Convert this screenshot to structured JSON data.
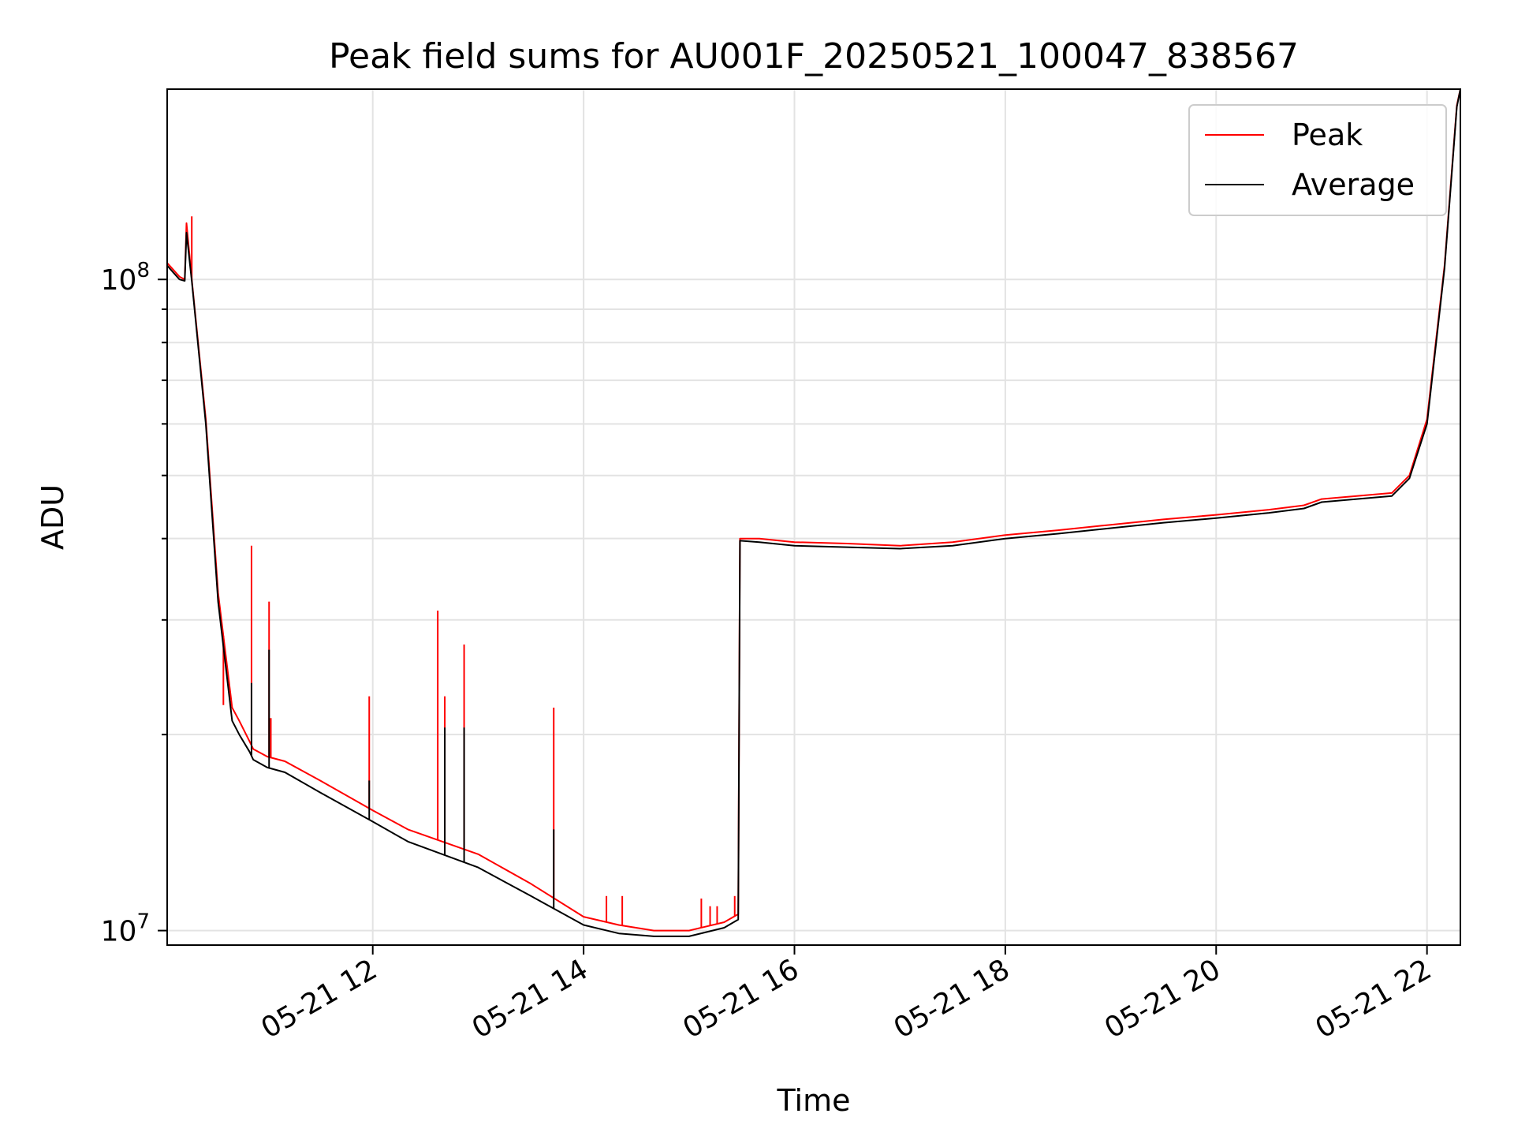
{
  "chart_data": {
    "type": "line",
    "title": "Peak field sums for AU001F_20250521_100047_838567",
    "xlabel": "Time",
    "ylabel": "ADU",
    "yscale": "log",
    "ylim": [
      9500000,
      196000000
    ],
    "xlim": [
      "05-21 10:03",
      "05-21 22:19"
    ],
    "x_ticks": [
      "05-21 12",
      "05-21 14",
      "05-21 16",
      "05-21 18",
      "05-21 20",
      "05-21 22"
    ],
    "y_ticks": [
      {
        "value": 10000000,
        "base": "10",
        "exp": "7"
      },
      {
        "value": 100000000,
        "base": "10",
        "exp": "8"
      }
    ],
    "grid": true,
    "legend_position": "top-right",
    "series": [
      {
        "name": "Peak",
        "color": "#ff0000",
        "x": [
          "05-21 10:03",
          "05-21 10:10",
          "05-21 10:13",
          "05-21 10:14",
          "05-21 10:17",
          "05-21 10:25",
          "05-21 10:32",
          "05-21 10:40",
          "05-21 10:44",
          "05-21 10:50",
          "05-21 10:52",
          "05-21 11:00",
          "05-21 11:10",
          "05-21 11:30",
          "05-21 12:00",
          "05-21 12:20",
          "05-21 13:00",
          "05-21 13:30",
          "05-21 14:00",
          "05-21 14:20",
          "05-21 14:40",
          "05-21 15:00",
          "05-21 15:20",
          "05-21 15:28",
          "05-21 15:29",
          "05-21 15:40",
          "05-21 16:00",
          "05-21 16:30",
          "05-21 17:00",
          "05-21 17:30",
          "05-21 18:00",
          "05-21 18:30",
          "05-21 19:00",
          "05-21 19:30",
          "05-21 20:00",
          "05-21 20:30",
          "05-21 20:50",
          "05-21 21:00",
          "05-21 21:20",
          "05-21 21:40",
          "05-21 21:50",
          "05-21 22:00",
          "05-21 22:10",
          "05-21 22:17",
          "05-21 22:19"
        ],
        "y": [
          106000000,
          101000000,
          100000000,
          122000000,
          100000000,
          61000000,
          33000000,
          22000000,
          21000000,
          19500000,
          19000000,
          18500000,
          18200000,
          17000000,
          15300000,
          14300000,
          13100000,
          11800000,
          10500000,
          10200000,
          10000000,
          10000000,
          10300000,
          10600000,
          40000000,
          40000000,
          39500000,
          39300000,
          39000000,
          39500000,
          40500000,
          41200000,
          42000000,
          42800000,
          43500000,
          44300000,
          45000000,
          46000000,
          46500000,
          47000000,
          50000000,
          61000000,
          105000000,
          185000000,
          196000000
        ],
        "spikes": [
          {
            "x": "05-21 10:17",
            "y": 125000000
          },
          {
            "x": "05-21 10:35",
            "y": 22200000
          },
          {
            "x": "05-21 10:51",
            "y": 39000000
          },
          {
            "x": "05-21 11:01",
            "y": 32000000
          },
          {
            "x": "05-21 11:02",
            "y": 21200000
          },
          {
            "x": "05-21 11:58",
            "y": 22900000
          },
          {
            "x": "05-21 12:37",
            "y": 31000000
          },
          {
            "x": "05-21 12:41",
            "y": 22900000
          },
          {
            "x": "05-21 12:52",
            "y": 27500000
          },
          {
            "x": "05-21 13:43",
            "y": 22000000
          },
          {
            "x": "05-21 14:13",
            "y": 11300000
          },
          {
            "x": "05-21 14:22",
            "y": 11300000
          },
          {
            "x": "05-21 15:07",
            "y": 11200000
          },
          {
            "x": "05-21 15:12",
            "y": 10900000
          },
          {
            "x": "05-21 15:16",
            "y": 10900000
          },
          {
            "x": "05-21 15:26",
            "y": 11300000
          }
        ]
      },
      {
        "name": "Average",
        "color": "#000000",
        "x": [
          "05-21 10:03",
          "05-21 10:10",
          "05-21 10:13",
          "05-21 10:14",
          "05-21 10:17",
          "05-21 10:25",
          "05-21 10:32",
          "05-21 10:40",
          "05-21 10:44",
          "05-21 10:50",
          "05-21 10:52",
          "05-21 11:00",
          "05-21 11:10",
          "05-21 11:30",
          "05-21 12:00",
          "05-21 12:20",
          "05-21 13:00",
          "05-21 13:30",
          "05-21 14:00",
          "05-21 14:20",
          "05-21 14:40",
          "05-21 15:00",
          "05-21 15:20",
          "05-21 15:28",
          "05-21 15:29",
          "05-21 15:40",
          "05-21 16:00",
          "05-21 16:30",
          "05-21 17:00",
          "05-21 17:30",
          "05-21 18:00",
          "05-21 18:30",
          "05-21 19:00",
          "05-21 19:30",
          "05-21 20:00",
          "05-21 20:30",
          "05-21 20:50",
          "05-21 21:00",
          "05-21 21:20",
          "05-21 21:40",
          "05-21 21:50",
          "05-21 22:00",
          "05-21 22:10",
          "05-21 22:17",
          "05-21 22:19"
        ],
        "y": [
          105000000,
          100000000,
          99500000,
          118000000,
          99500000,
          60000000,
          32000000,
          21000000,
          20000000,
          18800000,
          18300000,
          17800000,
          17500000,
          16300000,
          14700000,
          13700000,
          12500000,
          11300000,
          10200000,
          9900000,
          9800000,
          9800000,
          10100000,
          10400000,
          39700000,
          39500000,
          39000000,
          38800000,
          38600000,
          39000000,
          40000000,
          40700000,
          41500000,
          42300000,
          43000000,
          43800000,
          44500000,
          45500000,
          46000000,
          46500000,
          49500000,
          60000000,
          104000000,
          184000000,
          196000000
        ],
        "spikes": [
          {
            "x": "05-21 10:51",
            "y": 24000000
          },
          {
            "x": "05-21 11:01",
            "y": 27000000
          },
          {
            "x": "05-21 11:58",
            "y": 17000000
          },
          {
            "x": "05-21 12:37",
            "y": 13200000
          },
          {
            "x": "05-21 12:41",
            "y": 20500000
          },
          {
            "x": "05-21 12:52",
            "y": 20500000
          },
          {
            "x": "05-21 13:43",
            "y": 14300000
          }
        ]
      }
    ]
  }
}
